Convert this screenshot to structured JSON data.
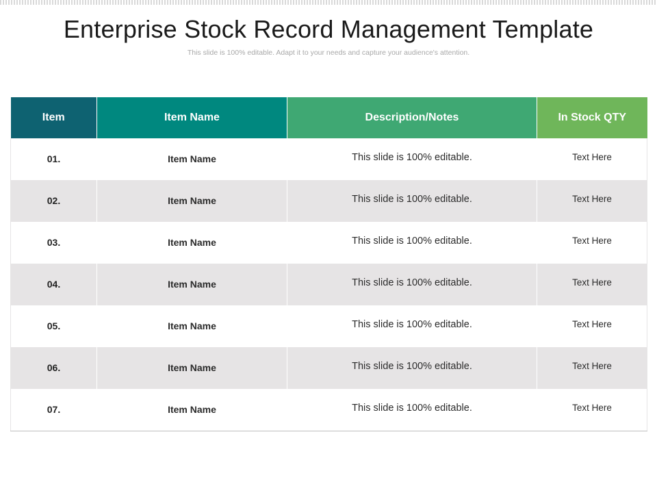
{
  "title": "Enterprise Stock Record Management Template",
  "subtitle": "This slide is 100% editable. Adapt it to your needs and capture your audience's attention.",
  "colors": {
    "header_item": "#0e6271",
    "header_name": "#00887f",
    "header_desc": "#3fa873",
    "header_qty": "#6fb65a",
    "row_alt": "#e6e4e5"
  },
  "table": {
    "headers": [
      "Item",
      "Item Name",
      "Description/Notes",
      "In Stock QTY"
    ],
    "rows": [
      {
        "num": "01.",
        "name": "Item Name",
        "desc": "This slide is 100% editable.",
        "qty": "Text Here"
      },
      {
        "num": "02.",
        "name": "Item Name",
        "desc": "This slide is 100% editable.",
        "qty": "Text Here"
      },
      {
        "num": "03.",
        "name": "Item Name",
        "desc": "This slide is 100% editable.",
        "qty": "Text Here"
      },
      {
        "num": "04.",
        "name": "Item Name",
        "desc": "This slide is 100% editable.",
        "qty": "Text Here"
      },
      {
        "num": "05.",
        "name": "Item Name",
        "desc": "This slide is 100% editable.",
        "qty": "Text Here"
      },
      {
        "num": "06.",
        "name": "Item Name",
        "desc": "This slide is 100% editable.",
        "qty": "Text Here"
      },
      {
        "num": "07.",
        "name": "Item Name",
        "desc": "This slide is 100% editable.",
        "qty": "Text Here"
      }
    ]
  }
}
